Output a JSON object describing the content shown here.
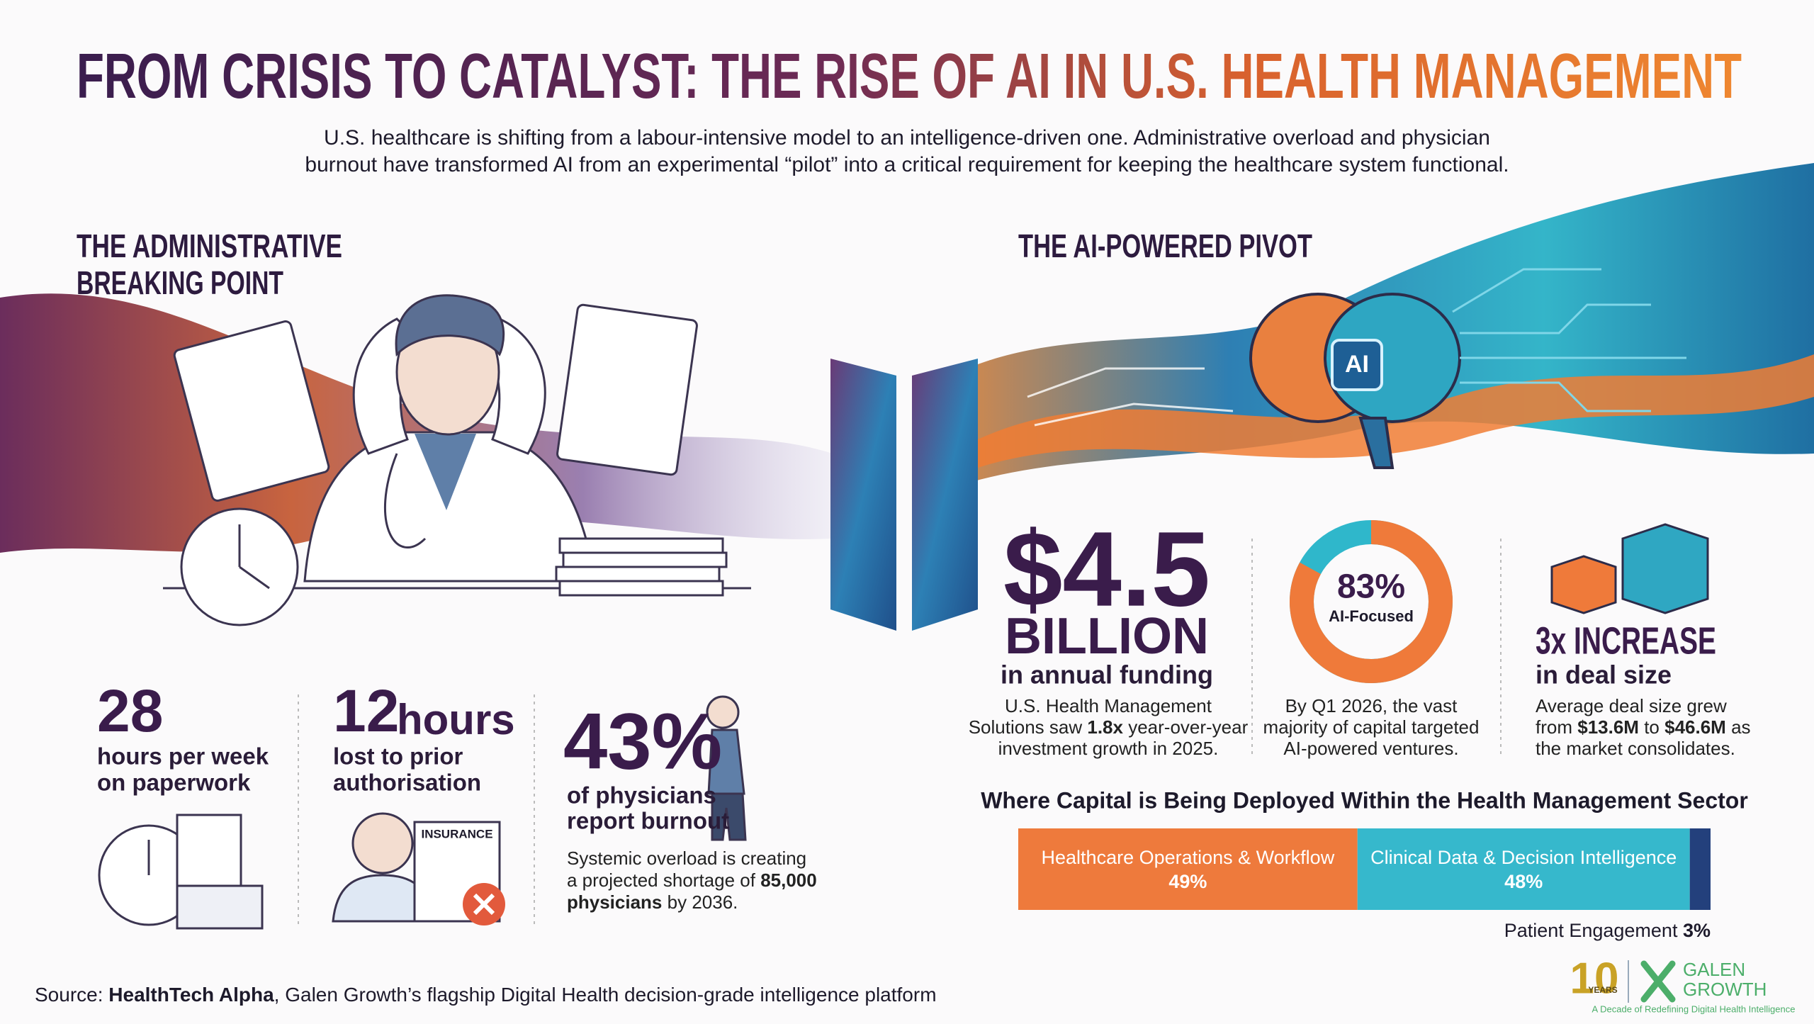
{
  "header": {
    "title": "FROM CRISIS TO CATALYST: THE RISE OF AI IN U.S. HEALTH MANAGEMENT",
    "subtitle": [
      "U.S. healthcare is shifting from a labour-intensive model to an intelligence-driven one. Administrative overload and physician",
      "burnout have transformed AI from an experimental “pilot” into a critical requirement for keeping the healthcare system functional."
    ]
  },
  "left": {
    "heading": [
      "THE ADMINISTRATIVE",
      "BREAKING POINT"
    ],
    "stats": [
      {
        "figure": "28",
        "lines": [
          "hours per week",
          "on paperwork"
        ]
      },
      {
        "figure": "12",
        "unit": "hours",
        "lines": [
          "lost to prior",
          "authorisation"
        ],
        "icon_label": "INSURANCE"
      },
      {
        "figure": "43%",
        "lines": [
          "of physicians",
          "report burnout"
        ],
        "note": [
          [
            "Systemic overload is creating"
          ],
          [
            "a projected shortage of ",
            {
              "bold": "85,000"
            }
          ],
          [
            {
              "bold": "physicians"
            },
            " by 2036."
          ]
        ]
      }
    ]
  },
  "right": {
    "heading": "THE AI-POWERED PIVOT",
    "chip": "AI",
    "funding": {
      "figure": "$4.5",
      "unit": "BILLION",
      "caption": "in annual funding",
      "lines": [
        [
          "U.S. Health Management"
        ],
        [
          "Solutions saw ",
          {
            "bold": "1.8x"
          },
          " year-over-year"
        ],
        [
          "investment growth in 2025."
        ]
      ]
    },
    "focus": {
      "lines": [
        [
          "By Q1 2026, the vast"
        ],
        [
          "majority of capital targeted"
        ],
        [
          "AI-powered ventures."
        ]
      ]
    },
    "deals": {
      "figure": "3x INCREASE",
      "caption": "in deal size",
      "lines": [
        [
          "Average deal size grew"
        ],
        [
          "from ",
          {
            "bold": "$13.6M"
          },
          " to ",
          {
            "bold": "$46.6M"
          },
          " as"
        ],
        [
          "the market consolidates."
        ]
      ]
    }
  },
  "chart_data": [
    {
      "type": "donut",
      "values": [
        83
      ],
      "value_labels": [
        "83%"
      ],
      "labels": [
        "AI-Focused"
      ],
      "range": [
        0,
        100
      ],
      "color": "#ef7a3a",
      "track_color": "#2fb7cb"
    },
    {
      "type": "stacked-bar",
      "title": "Where Capital is Being Deployed Within the Health Management Sector",
      "xlim": [
        0,
        100
      ],
      "series": [
        {
          "name": "Healthcare Operations & Workflow",
          "color": "#ee7a3c",
          "values": [
            49
          ],
          "value_labels": [
            "49%"
          ]
        },
        {
          "name": "Clinical Data & Decision Intelligence",
          "color": "#36b8cc",
          "values": [
            48
          ],
          "value_labels": [
            "48%"
          ]
        },
        {
          "name": "Patient Engagement",
          "color": "#23407c",
          "values": [
            3
          ],
          "value_labels": [
            "3%"
          ]
        }
      ]
    }
  ],
  "footer": {
    "source": [
      "Source: ",
      {
        "bold": "HealthTech Alpha"
      },
      ", Galen Growth’s flagship Digital Health decision-grade intelligence platform"
    ],
    "logo": {
      "years": "10",
      "years_label": "YEARS",
      "brand": [
        "GALEN",
        "GROWTH"
      ],
      "tagline": "A Decade of Redefining Digital Health Intelligence"
    }
  }
}
